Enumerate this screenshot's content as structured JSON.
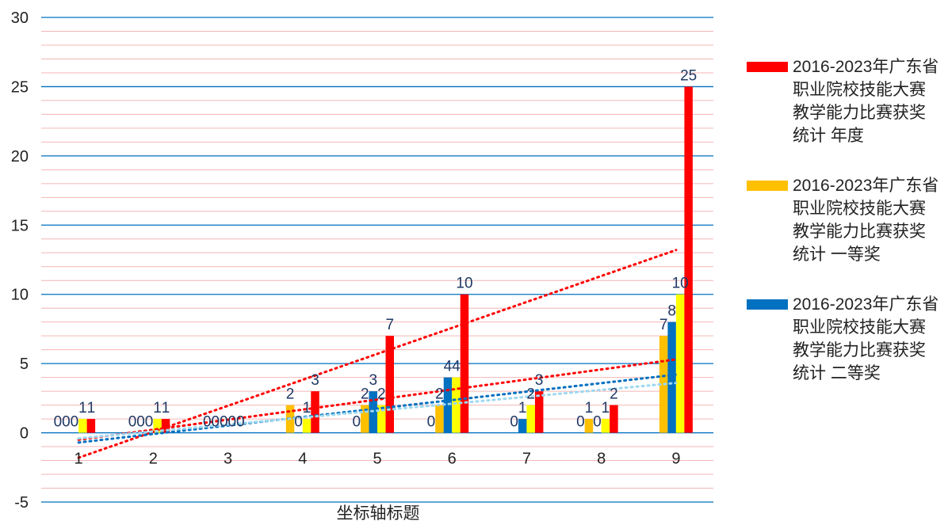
{
  "chart_data": {
    "type": "bar",
    "title": "",
    "xlabel": "坐标轴标题",
    "ylabel": "",
    "ylim": [
      -5,
      30
    ],
    "yticks": [
      "-5",
      "0",
      "5",
      "10",
      "15",
      "20",
      "25",
      "30"
    ],
    "categories": [
      "1",
      "2",
      "3",
      "4",
      "5",
      "6",
      "7",
      "8",
      "9"
    ],
    "legend_position": "right",
    "grid": true,
    "bars": [
      {
        "category": "1",
        "value": 0,
        "color": "#FFC000",
        "label": "0"
      },
      {
        "category": "1",
        "value": 0,
        "color": "#0070C0",
        "label": "0"
      },
      {
        "category": "1",
        "value": 1,
        "color": "#FFFF00",
        "label": "1"
      },
      {
        "category": "1",
        "value": 1,
        "color": "#FF0000",
        "label": "1"
      },
      {
        "category": "2",
        "value": 0,
        "color": "#FFC000",
        "label": "0"
      },
      {
        "category": "2",
        "value": 0,
        "color": "#0070C0",
        "label": "0"
      },
      {
        "category": "2",
        "value": 1,
        "color": "#FFFF00",
        "label": "1"
      },
      {
        "category": "2",
        "value": 1,
        "color": "#FF0000",
        "label": "1"
      },
      {
        "category": "3",
        "value": 0,
        "color": "#FFC000",
        "label": "0"
      },
      {
        "category": "3",
        "value": 0,
        "color": "#0070C0",
        "label": "0"
      },
      {
        "category": "3",
        "value": 0,
        "color": "#FFFF00",
        "label": "0"
      },
      {
        "category": "3",
        "value": 0,
        "color": "#FF0000",
        "label": "0"
      },
      {
        "category": "4",
        "value": 2,
        "color": "#FFC000",
        "label": "2"
      },
      {
        "category": "4",
        "value": 0,
        "color": "#0070C0",
        "label": "0"
      },
      {
        "category": "4",
        "value": 1,
        "color": "#FFFF00",
        "label": "1"
      },
      {
        "category": "4",
        "value": 3,
        "color": "#FF0000",
        "label": "3"
      },
      {
        "category": "5",
        "value": 2,
        "color": "#FFC000",
        "label": "2"
      },
      {
        "category": "5",
        "value": 3,
        "color": "#0070C0",
        "label": "3"
      },
      {
        "category": "5",
        "value": 2,
        "color": "#FFFF00",
        "label": "2"
      },
      {
        "category": "5",
        "value": 7,
        "color": "#FF0000",
        "label": "7"
      },
      {
        "category": "6",
        "value": 2,
        "color": "#FFC000",
        "label": "2"
      },
      {
        "category": "6",
        "value": 4,
        "color": "#0070C0",
        "label": "4"
      },
      {
        "category": "6",
        "value": 4,
        "color": "#FFFF00",
        "label": "4"
      },
      {
        "category": "6",
        "value": 10,
        "color": "#FF0000",
        "label": "10"
      },
      {
        "category": "7",
        "value": 0,
        "color": "#FFC000",
        "label": "0"
      },
      {
        "category": "7",
        "value": 1,
        "color": "#0070C0",
        "label": "1"
      },
      {
        "category": "7",
        "value": 2,
        "color": "#FFFF00",
        "label": "2"
      },
      {
        "category": "7",
        "value": 3,
        "color": "#FF0000",
        "label": "3"
      },
      {
        "category": "8",
        "value": 1,
        "color": "#FFC000",
        "label": "1"
      },
      {
        "category": "8",
        "value": 0,
        "color": "#0070C0",
        "label": "0"
      },
      {
        "category": "8",
        "value": 1,
        "color": "#FFFF00",
        "label": "1"
      },
      {
        "category": "8",
        "value": 2,
        "color": "#FF0000",
        "label": "2"
      },
      {
        "category": "9",
        "value": 7,
        "color": "#FFC000",
        "label": "7"
      },
      {
        "category": "9",
        "value": 8,
        "color": "#0070C0",
        "label": "8"
      },
      {
        "category": "9",
        "value": 10,
        "color": "#FFFF00",
        "label": "10"
      },
      {
        "category": "9",
        "value": 25,
        "color": "#FF0000",
        "label": "25"
      }
    ],
    "extra_labels": [
      {
        "category": "1",
        "text": "0"
      },
      {
        "category": "2",
        "text": "0"
      },
      {
        "category": "3",
        "text": "0"
      },
      {
        "category": "5",
        "text": "0"
      },
      {
        "category": "6",
        "text": "0"
      },
      {
        "category": "8",
        "text": "0"
      }
    ],
    "trendlines": [
      {
        "color": "#FF0000",
        "from": [
          1,
          -1.8
        ],
        "to": [
          9,
          13.2
        ]
      },
      {
        "color": "#FF0000",
        "from": [
          1,
          -0.5
        ],
        "to": [
          9,
          5.3
        ]
      },
      {
        "color": "#0070C0",
        "from": [
          1,
          -0.7
        ],
        "to": [
          9,
          4.2
        ]
      },
      {
        "color": "#9DD8F0",
        "from": [
          1,
          -0.4
        ],
        "to": [
          9,
          3.6
        ]
      }
    ],
    "legend": [
      {
        "name": "2016-2023年广东省职业院校技能大赛教学能力比赛获奖统计 年度",
        "color": "#FF0000"
      },
      {
        "name": "2016-2023年广东省职业院校技能大赛教学能力比赛获奖统计 一等奖",
        "color": "#FFC000"
      },
      {
        "name": "2016-2023年广东省职业院校技能大赛教学能力比赛获奖统计 二等奖",
        "color": "#0070C0"
      }
    ]
  }
}
